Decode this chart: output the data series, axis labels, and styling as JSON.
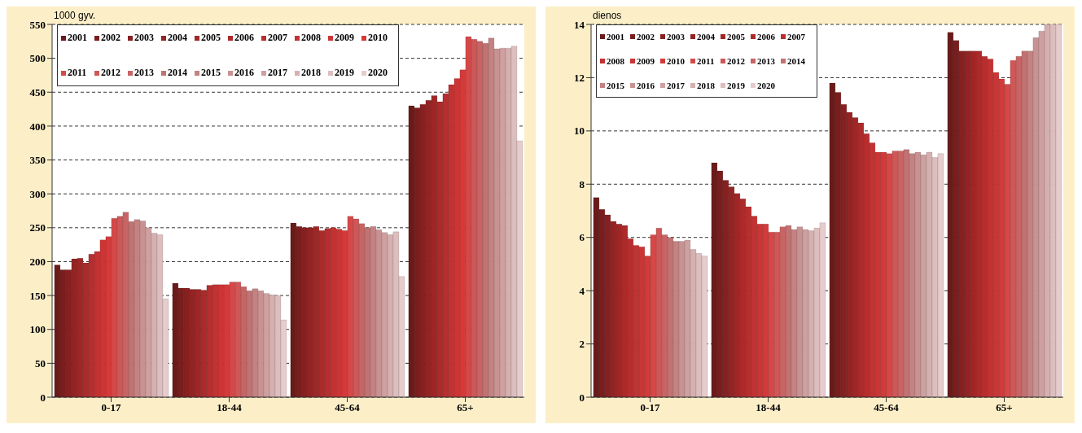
{
  "chart_data": [
    {
      "type": "bar",
      "ylabel": "1000 gyv.",
      "categories": [
        "0-17",
        "18-44",
        "45-64",
        "65+"
      ],
      "ylim": [
        0,
        550
      ],
      "yticks": [
        0,
        50,
        100,
        150,
        200,
        250,
        300,
        350,
        400,
        450,
        500,
        550
      ],
      "grid": "y",
      "legend": "top left",
      "series": [
        {
          "name": "2001",
          "color": "#6b1a1a",
          "values": [
            195,
            168,
            257,
            430
          ]
        },
        {
          "name": "2002",
          "color": "#7a1d1d",
          "values": [
            188,
            161,
            252,
            427
          ]
        },
        {
          "name": "2003",
          "color": "#872020",
          "values": [
            188,
            161,
            250,
            432
          ]
        },
        {
          "name": "2004",
          "color": "#942323",
          "values": [
            204,
            159,
            250,
            438
          ]
        },
        {
          "name": "2005",
          "color": "#a02626",
          "values": [
            205,
            159,
            252,
            445
          ]
        },
        {
          "name": "2006",
          "color": "#ac2a2a",
          "values": [
            198,
            158,
            246,
            436
          ]
        },
        {
          "name": "2007",
          "color": "#b82e2e",
          "values": [
            211,
            165,
            249,
            448
          ]
        },
        {
          "name": "2008",
          "color": "#c33232",
          "values": [
            215,
            166,
            250,
            461
          ]
        },
        {
          "name": "2009",
          "color": "#cc3535",
          "values": [
            232,
            166,
            248,
            470
          ]
        },
        {
          "name": "2010",
          "color": "#d43a3a",
          "values": [
            237,
            166,
            246,
            483
          ]
        },
        {
          "name": "2011",
          "color": "#d64848",
          "values": [
            264,
            170,
            267,
            532
          ]
        },
        {
          "name": "2012",
          "color": "#cf5757",
          "values": [
            267,
            170,
            263,
            528
          ]
        },
        {
          "name": "2013",
          "color": "#c86464",
          "values": [
            273,
            163,
            256,
            525
          ]
        },
        {
          "name": "2014",
          "color": "#c27272",
          "values": [
            259,
            157,
            250,
            522
          ]
        },
        {
          "name": "2015",
          "color": "#c48282",
          "values": [
            262,
            160,
            252,
            530
          ]
        },
        {
          "name": "2016",
          "color": "#c99292",
          "values": [
            260,
            157,
            247,
            514
          ]
        },
        {
          "name": "2017",
          "color": "#cfa0a0",
          "values": [
            250,
            153,
            243,
            515
          ]
        },
        {
          "name": "2018",
          "color": "#d6b0b0",
          "values": [
            242,
            151,
            240,
            515
          ]
        },
        {
          "name": "2019",
          "color": "#ddbebe",
          "values": [
            240,
            150,
            244,
            518
          ]
        },
        {
          "name": "2020",
          "color": "#e6cccc",
          "values": [
            145,
            114,
            178,
            378
          ]
        }
      ]
    },
    {
      "type": "bar",
      "ylabel": "dienos",
      "categories": [
        "0-17",
        "18-44",
        "45-64",
        "65+"
      ],
      "ylim": [
        0,
        14
      ],
      "yticks": [
        0,
        2,
        4,
        6,
        8,
        10,
        12,
        14
      ],
      "grid": "y",
      "legend": "top left",
      "series": [
        {
          "name": "2001",
          "color": "#6b1a1a",
          "values": [
            7.5,
            8.8,
            11.8,
            13.7
          ]
        },
        {
          "name": "2002",
          "color": "#7a1d1d",
          "values": [
            7.05,
            8.5,
            11.45,
            13.4
          ]
        },
        {
          "name": "2003",
          "color": "#872020",
          "values": [
            6.85,
            8.15,
            11.0,
            13.0
          ]
        },
        {
          "name": "2004",
          "color": "#942323",
          "values": [
            6.6,
            7.9,
            10.7,
            13.0
          ]
        },
        {
          "name": "2005",
          "color": "#a02626",
          "values": [
            6.5,
            7.65,
            10.5,
            13.0
          ]
        },
        {
          "name": "2006",
          "color": "#ac2a2a",
          "values": [
            6.45,
            7.45,
            10.3,
            13.0
          ]
        },
        {
          "name": "2007",
          "color": "#b82e2e",
          "values": [
            5.95,
            7.15,
            9.9,
            12.8
          ]
        },
        {
          "name": "2008",
          "color": "#c33232",
          "values": [
            5.7,
            6.8,
            9.55,
            12.7
          ]
        },
        {
          "name": "2009",
          "color": "#cc3535",
          "values": [
            5.65,
            6.5,
            9.2,
            12.2
          ]
        },
        {
          "name": "2010",
          "color": "#d43a3a",
          "values": [
            5.3,
            6.5,
            9.2,
            11.95
          ]
        },
        {
          "name": "2011",
          "color": "#d64848",
          "values": [
            6.1,
            6.2,
            9.15,
            11.75
          ]
        },
        {
          "name": "2012",
          "color": "#cf5757",
          "values": [
            6.35,
            6.2,
            9.25,
            12.65
          ]
        },
        {
          "name": "2013",
          "color": "#c86464",
          "values": [
            6.1,
            6.4,
            9.25,
            12.8
          ]
        },
        {
          "name": "2014",
          "color": "#c27272",
          "values": [
            6.0,
            6.45,
            9.3,
            13.0
          ]
        },
        {
          "name": "2015",
          "color": "#c48282",
          "values": [
            5.85,
            6.3,
            9.15,
            13.0
          ]
        },
        {
          "name": "2016",
          "color": "#c99292",
          "values": [
            5.85,
            6.4,
            9.2,
            13.5
          ]
        },
        {
          "name": "2017",
          "color": "#cfa0a0",
          "values": [
            5.9,
            6.3,
            9.1,
            13.75
          ]
        },
        {
          "name": "2018",
          "color": "#d6b0b0",
          "values": [
            5.55,
            6.25,
            9.2,
            14
          ]
        },
        {
          "name": "2019",
          "color": "#ddbebe",
          "values": [
            5.4,
            6.35,
            9.0,
            14
          ]
        },
        {
          "name": "2020",
          "color": "#e6cccc",
          "values": [
            5.3,
            6.55,
            9.15,
            14
          ]
        }
      ]
    }
  ]
}
